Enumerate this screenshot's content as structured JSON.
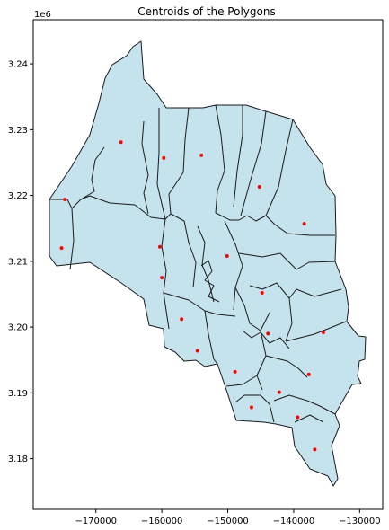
{
  "chart_data": {
    "type": "scatter",
    "title": "Centroids of the Polygons",
    "y_offset_label": "1e6",
    "xlim": [
      -179500,
      -126500
    ],
    "ylim": [
      3172300,
      3246700
    ],
    "x_ticks": [
      -170000,
      -160000,
      -150000,
      -140000,
      -130000
    ],
    "x_tick_labels": [
      "−170000",
      "−160000",
      "−150000",
      "−140000",
      "−130000"
    ],
    "y_ticks": [
      3180000,
      3190000,
      3200000,
      3210000,
      3220000,
      3230000,
      3240000
    ],
    "y_tick_labels": [
      "3.18",
      "3.19",
      "3.20",
      "3.21",
      "3.22",
      "3.23",
      "3.24"
    ],
    "polygon_fill": "#c5e3ec",
    "polygon_edge": "#1a1a1a",
    "marker_color": "#ff0000",
    "centroids": [
      {
        "x": -166200,
        "y": 3228100
      },
      {
        "x": -159700,
        "y": 3225700
      },
      {
        "x": -154000,
        "y": 3226100
      },
      {
        "x": -174700,
        "y": 3219400
      },
      {
        "x": -145200,
        "y": 3221300
      },
      {
        "x": -138400,
        "y": 3215700
      },
      {
        "x": -175200,
        "y": 3212000
      },
      {
        "x": -160300,
        "y": 3212200
      },
      {
        "x": -150100,
        "y": 3210800
      },
      {
        "x": -160000,
        "y": 3207500
      },
      {
        "x": -144800,
        "y": 3205200
      },
      {
        "x": -157000,
        "y": 3201200
      },
      {
        "x": -135500,
        "y": 3199200
      },
      {
        "x": -143900,
        "y": 3199000
      },
      {
        "x": -154600,
        "y": 3196400
      },
      {
        "x": -148900,
        "y": 3193200
      },
      {
        "x": -137700,
        "y": 3192800
      },
      {
        "x": -142200,
        "y": 3190100
      },
      {
        "x": -146400,
        "y": 3187800
      },
      {
        "x": -139400,
        "y": 3186300
      },
      {
        "x": -136800,
        "y": 3181400
      }
    ]
  }
}
